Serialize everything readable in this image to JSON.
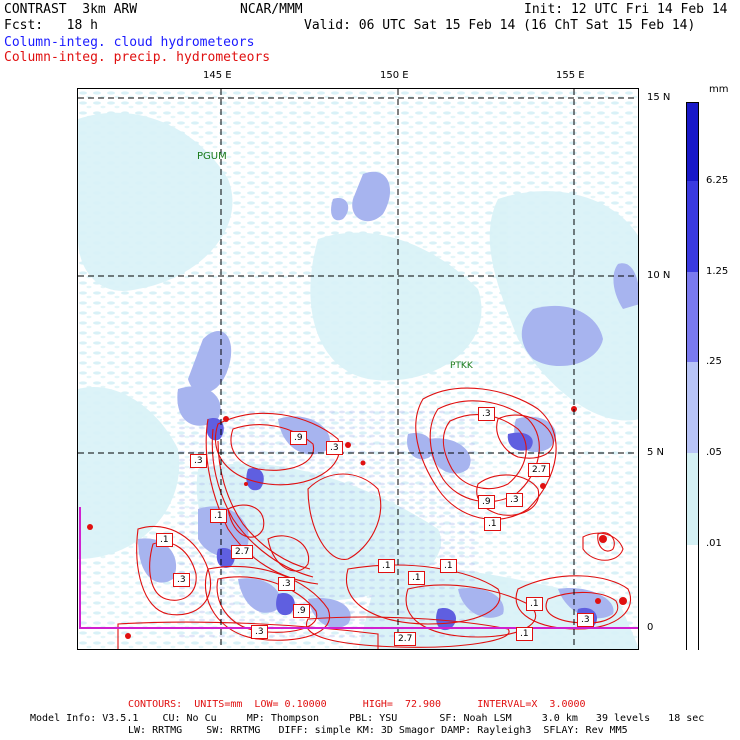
{
  "header": {
    "model": "CONTRAST  3km ARW",
    "org": "NCAR/MMM",
    "init": "Init: 12 UTC Fri 14 Feb 14",
    "fcst": "Fcst:   18 h",
    "valid": "Valid: 06 UTC Sat 15 Feb 14 (16 ChT Sat 15 Feb 14)",
    "field1": "Column-integ. cloud hydrometeors",
    "field2": "Column-integ. precip. hydrometeors"
  },
  "map": {
    "lon_labels": [
      "145 E",
      "150 E",
      "155 E"
    ],
    "lat_labels": [
      "15 N",
      "10 N",
      "5 N",
      "0"
    ],
    "stations": [
      "PGUM",
      "PTKK"
    ],
    "contour_labels": [
      ".9",
      ".3",
      ".3",
      ".1",
      ".1",
      "2.7",
      ".3",
      ".9",
      ".3",
      ".1",
      ".1",
      ".3",
      ".9",
      "2.7",
      ".3",
      ".1",
      ".3",
      ".1",
      ".1",
      "2.7",
      ".3",
      ".1"
    ],
    "colors": {
      "cloud_light": "#d8f2f7",
      "cloud_mid": "#a7b4ef",
      "cloud_dark": "#6a6ae8",
      "precip": "#e01010",
      "magenta": "#d020d0"
    }
  },
  "colorbar": {
    "unit": "mm",
    "ticks": [
      "6.25",
      "1.25",
      ".25",
      ".05",
      ".01"
    ],
    "colors": [
      "#1818c8",
      "#3a3ae0",
      "#7a7af0",
      "#b8c4f7",
      "#d4f0f4",
      "#ffffff"
    ]
  },
  "footer": {
    "contours": "CONTOURS:  UNITS=mm  LOW= 0.10000      HIGH=  72.900      INTERVAL=X  3.0000",
    "info1": "Model Info: V3.5.1    CU: No Cu     MP: Thompson     PBL: YSU       SF: Noah LSM     3.0 km   39 levels   18 sec",
    "info2": "LW: RRTMG    SW: RRTMG   DIFF: simple KM: 3D Smagor DAMP: Rayleigh3  SFLAY: Rev MM5"
  }
}
